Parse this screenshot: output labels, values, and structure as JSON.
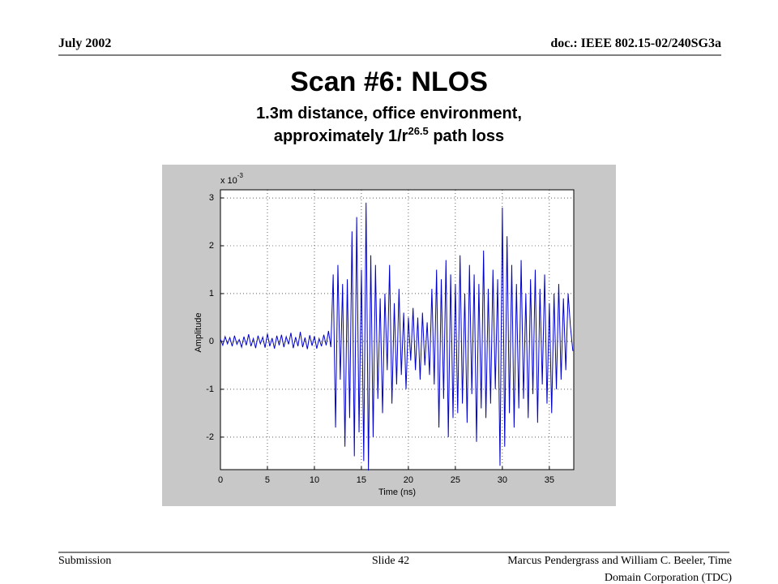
{
  "header": {
    "date": "July 2002",
    "doc": "doc.: IEEE 802.15-02/240SG3a"
  },
  "slide_title": "Scan #6: NLOS",
  "subtitle": {
    "line1": "1.3m distance, office environment,",
    "line2_text": "approximately 1/r",
    "line2_exponent": "26.5",
    "line2_end": " path loss"
  },
  "footer": {
    "left": "Submission",
    "center": "Slide 42",
    "right_line1": "Marcus Pendergrass and William C. Beeler, Time",
    "right_line2": "Domain Corporation (TDC)"
  },
  "chart_data": {
    "type": "line",
    "xlabel": "Time (ns)",
    "ylabel": "Amplitude",
    "y_multiplier": {
      "base": "x 10",
      "exponent": "-3"
    },
    "xlim": [
      0,
      37.6
    ],
    "ylim": [
      -2.68,
      3.17
    ],
    "xticks": [
      0,
      5,
      10,
      15,
      20,
      25,
      30,
      35
    ],
    "yticks": [
      -2,
      -1,
      0,
      1,
      2,
      3
    ],
    "grid": true,
    "color": "#0000cc",
    "x": [
      0,
      0.25,
      0.5,
      0.75,
      1,
      1.25,
      1.5,
      1.75,
      2,
      2.25,
      2.5,
      2.75,
      3,
      3.25,
      3.5,
      3.75,
      4,
      4.25,
      4.5,
      4.75,
      5,
      5.25,
      5.5,
      5.75,
      6,
      6.25,
      6.5,
      6.75,
      7,
      7.25,
      7.5,
      7.75,
      8,
      8.25,
      8.5,
      8.75,
      9,
      9.25,
      9.5,
      9.75,
      10,
      10.25,
      10.5,
      10.75,
      11,
      11.25,
      11.5,
      11.75,
      12,
      12.25,
      12.5,
      12.75,
      13,
      13.25,
      13.5,
      13.75,
      14,
      14.25,
      14.5,
      14.75,
      15,
      15.25,
      15.5,
      15.75,
      16,
      16.25,
      16.5,
      16.75,
      17,
      17.25,
      17.5,
      17.75,
      18,
      18.25,
      18.5,
      18.75,
      19,
      19.25,
      19.5,
      19.75,
      20,
      20.25,
      20.5,
      20.75,
      21,
      21.25,
      21.5,
      21.75,
      22,
      22.25,
      22.5,
      22.75,
      23,
      23.25,
      23.5,
      23.75,
      24,
      24.25,
      24.5,
      24.75,
      25,
      25.25,
      25.5,
      25.75,
      26,
      26.25,
      26.5,
      26.75,
      27,
      27.25,
      27.5,
      27.75,
      28,
      28.25,
      28.5,
      28.75,
      29,
      29.25,
      29.5,
      29.75,
      30,
      30.25,
      30.5,
      30.75,
      31,
      31.25,
      31.5,
      31.75,
      32,
      32.25,
      32.5,
      32.75,
      33,
      33.25,
      33.5,
      33.75,
      34,
      34.25,
      34.5,
      34.75,
      35,
      35.25,
      35.5,
      35.75,
      36,
      36.25,
      36.5,
      36.75,
      37,
      37.25,
      37.5
    ],
    "values": [
      0.05,
      -0.08,
      0.1,
      -0.05,
      0.08,
      -0.1,
      0.12,
      -0.06,
      0.04,
      -0.12,
      0.1,
      -0.08,
      0.15,
      -0.1,
      0.06,
      -0.14,
      0.12,
      -0.05,
      0.09,
      -0.13,
      0.16,
      -0.1,
      0.07,
      -0.15,
      0.12,
      -0.08,
      0.14,
      -0.12,
      0.1,
      -0.06,
      0.18,
      -0.14,
      0.09,
      -0.1,
      0.2,
      -0.12,
      0.08,
      -0.16,
      0.13,
      -0.09,
      0.11,
      -0.15,
      0.06,
      -0.1,
      0.14,
      -0.08,
      0.22,
      -0.12,
      1.4,
      -1.8,
      1.6,
      -0.8,
      1.2,
      -2.2,
      1.3,
      -1.6,
      2.3,
      -2.4,
      2.6,
      -1.9,
      1.5,
      -2.5,
      2.9,
      -2.7,
      1.8,
      -2.0,
      1.6,
      -1.2,
      0.9,
      -1.5,
      1.0,
      -0.6,
      1.6,
      -1.3,
      0.8,
      -0.9,
      1.1,
      -0.7,
      0.6,
      -1.0,
      0.5,
      -0.4,
      0.7,
      -0.6,
      0.5,
      -0.8,
      0.6,
      -0.5,
      0.4,
      -0.7,
      1.1,
      -0.9,
      1.5,
      -1.8,
      1.3,
      -1.2,
      1.7,
      -2.0,
      1.4,
      -1.6,
      1.2,
      -1.5,
      1.8,
      -1.3,
      1.0,
      -1.7,
      1.6,
      -1.1,
      1.4,
      -2.1,
      1.2,
      -1.4,
      1.9,
      -1.6,
      1.1,
      -1.3,
      1.5,
      -1.0,
      1.3,
      -2.6,
      2.8,
      -2.2,
      2.2,
      -1.5,
      1.6,
      -1.8,
      1.2,
      -1.4,
      1.7,
      -1.2,
      1.0,
      -1.6,
      1.3,
      -1.1,
      1.5,
      -1.7,
      1.1,
      -0.9,
      1.4,
      -1.3,
      0.8,
      -1.5,
      1.0,
      -1.0,
      1.2,
      -0.8,
      0.9,
      -0.6,
      1.0,
      0.3,
      -0.2
    ]
  }
}
